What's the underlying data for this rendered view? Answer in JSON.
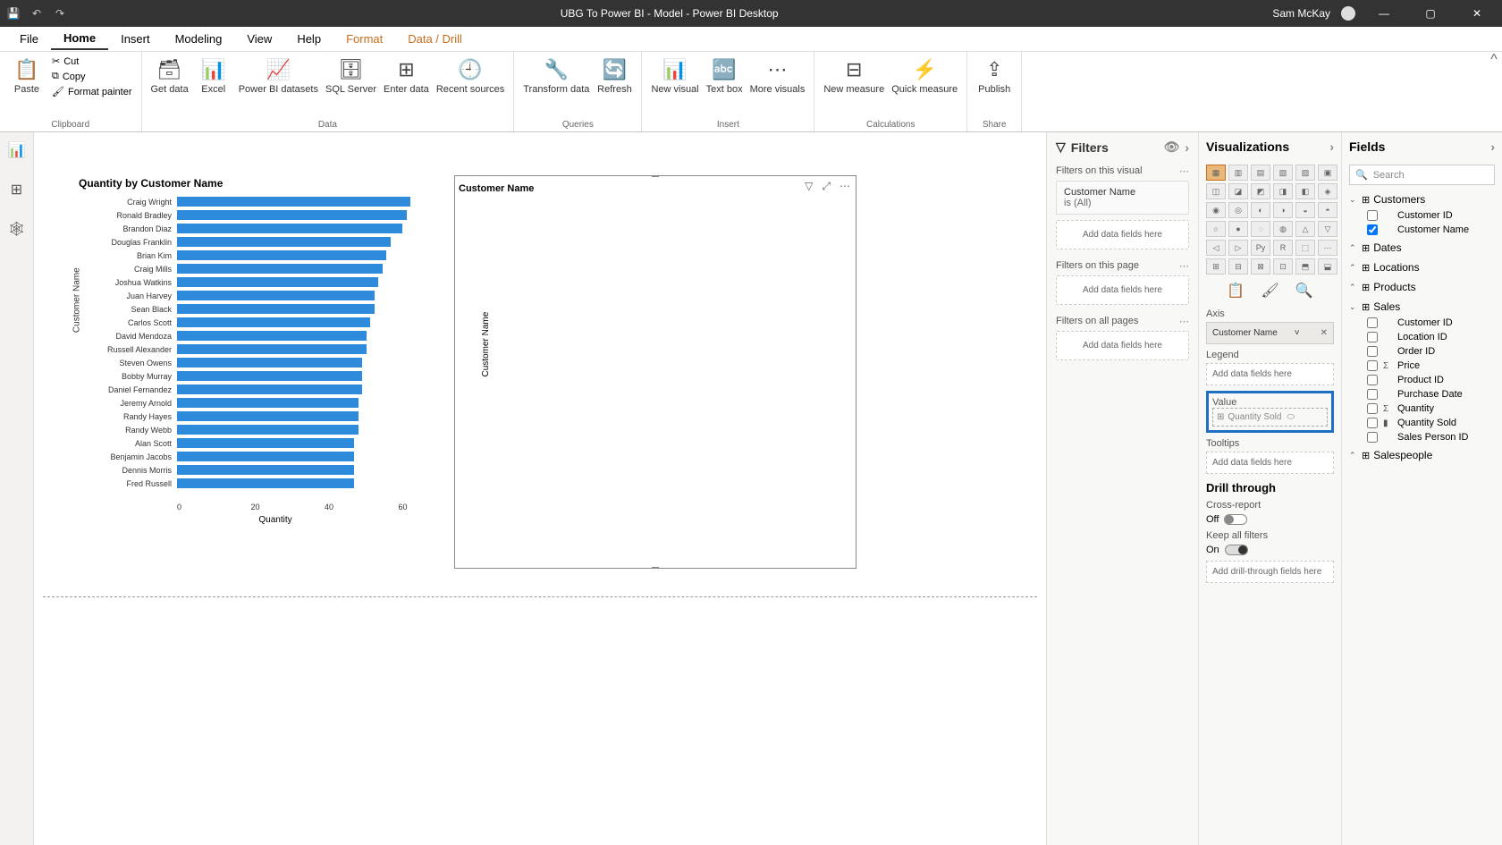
{
  "titlebar": {
    "title": "UBG To Power BI - Model - Power BI Desktop",
    "user": "Sam McKay"
  },
  "menu": {
    "items": [
      "File",
      "Home",
      "Insert",
      "Modeling",
      "View",
      "Help",
      "Format",
      "Data / Drill"
    ],
    "active_index": 1,
    "orange_from_index": 6
  },
  "ribbon": {
    "clipboard": {
      "paste": "Paste",
      "cut": "Cut",
      "copy": "Copy",
      "fmt": "Format painter",
      "group": "Clipboard"
    },
    "data": {
      "get": "Get data",
      "excel": "Excel",
      "pbi": "Power BI datasets",
      "sql": "SQL Server",
      "enter": "Enter data",
      "recent": "Recent sources",
      "group": "Data"
    },
    "queries": {
      "transform": "Transform data",
      "refresh": "Refresh",
      "group": "Queries"
    },
    "insert": {
      "newv": "New visual",
      "text": "Text box",
      "more": "More visuals",
      "group": "Insert"
    },
    "calc": {
      "newm": "New measure",
      "quick": "Quick measure",
      "group": "Calculations"
    },
    "share": {
      "publish": "Publish",
      "group": "Share"
    }
  },
  "chart1": {
    "title": "Quantity by Customer Name",
    "y_axis_label": "Customer Name",
    "x_axis_label": "Quantity",
    "x_ticks": [
      "0",
      "20",
      "40",
      "60"
    ],
    "bar_color": "#2e8bdb",
    "max_value": 60,
    "bars": [
      {
        "label": "Craig Wright",
        "value": 58
      },
      {
        "label": "Ronald Bradley",
        "value": 57
      },
      {
        "label": "Brandon Diaz",
        "value": 56
      },
      {
        "label": "Douglas Franklin",
        "value": 53
      },
      {
        "label": "Brian Kim",
        "value": 52
      },
      {
        "label": "Craig Mills",
        "value": 51
      },
      {
        "label": "Joshua Watkins",
        "value": 50
      },
      {
        "label": "Juan Harvey",
        "value": 49
      },
      {
        "label": "Sean Black",
        "value": 49
      },
      {
        "label": "Carlos Scott",
        "value": 48
      },
      {
        "label": "David Mendoza",
        "value": 47
      },
      {
        "label": "Russell Alexander",
        "value": 47
      },
      {
        "label": "Steven Owens",
        "value": 46
      },
      {
        "label": "Bobby Murray",
        "value": 46
      },
      {
        "label": "Daniel Fernandez",
        "value": 46
      },
      {
        "label": "Jeremy Arnold",
        "value": 45
      },
      {
        "label": "Randy Hayes",
        "value": 45
      },
      {
        "label": "Randy Webb",
        "value": 45
      },
      {
        "label": "Alan Scott",
        "value": 44
      },
      {
        "label": "Benjamin Jacobs",
        "value": 44
      },
      {
        "label": "Dennis Morris",
        "value": 44
      },
      {
        "label": "Fred Russell",
        "value": 44
      }
    ]
  },
  "chart2": {
    "title": "Customer Name",
    "y_axis_label": "Customer Name"
  },
  "filters": {
    "pane_title": "Filters",
    "on_visual": "Filters on this visual",
    "card_field": "Customer Name",
    "card_value": "is (All)",
    "on_page": "Filters on this page",
    "on_all": "Filters on all pages",
    "add_placeholder": "Add data fields here"
  },
  "viz": {
    "pane_title": "Visualizations",
    "axis": "Axis",
    "axis_field": "Customer Name",
    "legend": "Legend",
    "value": "Value",
    "value_drag": "Quantity Sold",
    "tooltips": "Tooltips",
    "add_placeholder": "Add data fields here",
    "drill": "Drill through",
    "cross": "Cross-report",
    "cross_state": "Off",
    "keep": "Keep all filters",
    "keep_state": "On",
    "drill_add": "Add drill-through fields here"
  },
  "fields": {
    "pane_title": "Fields",
    "search_placeholder": "Search",
    "tables": [
      {
        "name": "Customers",
        "expanded": true,
        "fields": [
          {
            "name": "Customer ID",
            "checked": false,
            "sigma": false
          },
          {
            "name": "Customer Name",
            "checked": true,
            "sigma": false
          }
        ]
      },
      {
        "name": "Dates",
        "expanded": false,
        "fields": []
      },
      {
        "name": "Locations",
        "expanded": false,
        "fields": []
      },
      {
        "name": "Products",
        "expanded": false,
        "fields": []
      },
      {
        "name": "Sales",
        "expanded": true,
        "fields": [
          {
            "name": "Customer ID",
            "checked": false,
            "sigma": false
          },
          {
            "name": "Location ID",
            "checked": false,
            "sigma": false
          },
          {
            "name": "Order ID",
            "checked": false,
            "sigma": false
          },
          {
            "name": "Price",
            "checked": false,
            "sigma": true
          },
          {
            "name": "Product ID",
            "checked": false,
            "sigma": false
          },
          {
            "name": "Purchase Date",
            "checked": false,
            "sigma": false
          },
          {
            "name": "Quantity",
            "checked": false,
            "sigma": true
          },
          {
            "name": "Quantity Sold",
            "checked": false,
            "sigma": false,
            "measure": true
          },
          {
            "name": "Sales Person ID",
            "checked": false,
            "sigma": false
          }
        ]
      },
      {
        "name": "Salespeople",
        "expanded": false,
        "fields": []
      }
    ]
  }
}
